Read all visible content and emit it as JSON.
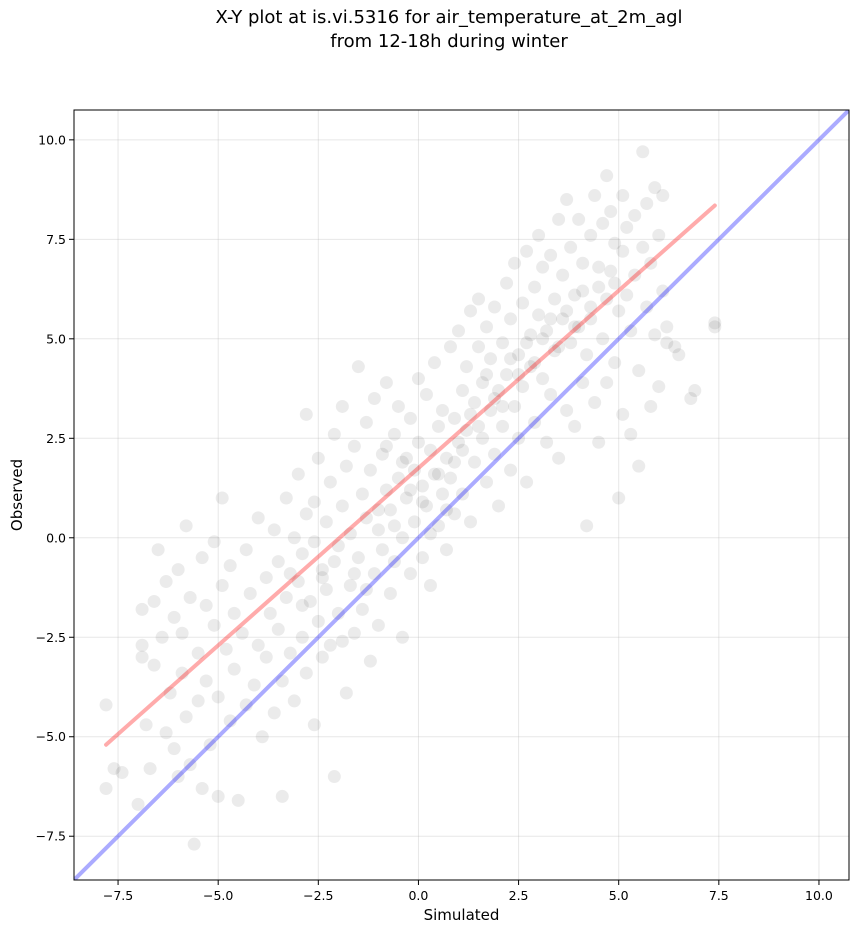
{
  "title": {
    "line1": "X-Y plot at is.vi.5316 for air_temperature_at_2m_agl",
    "line2": "from 12-18h during winter"
  },
  "chart_data": {
    "type": "scatter",
    "title": "X-Y plot at is.vi.5316 for air_temperature_at_2m_agl\nfrom 12-18h during winter",
    "xlabel": "Simulated",
    "ylabel": "Observed",
    "xlim": [
      -8.6,
      10.75
    ],
    "ylim": [
      -8.6,
      10.75
    ],
    "xticks": [
      -7.5,
      -5.0,
      -2.5,
      0.0,
      2.5,
      5.0,
      7.5,
      10.0
    ],
    "yticks": [
      -7.5,
      -5.0,
      -2.5,
      0.0,
      2.5,
      5.0,
      7.5,
      10.0
    ],
    "xtick_labels": [
      "−7.5",
      "−5.0",
      "−2.5",
      "0.0",
      "2.5",
      "5.0",
      "7.5",
      "10.0"
    ],
    "ytick_labels": [
      "−7.5",
      "−5.0",
      "−2.5",
      "0.0",
      "2.5",
      "5.0",
      "7.5",
      "10.0"
    ],
    "grid": true,
    "point_color": "#000000",
    "point_alpha": 0.08,
    "points": [
      [
        -7.8,
        -4.2
      ],
      [
        -7.8,
        -6.3
      ],
      [
        -7.6,
        -5.8
      ],
      [
        -7.4,
        -5.9
      ],
      [
        -7.0,
        -6.7
      ],
      [
        -6.9,
        -2.7
      ],
      [
        -6.9,
        -1.8
      ],
      [
        -6.9,
        -3.0
      ],
      [
        -6.8,
        -4.7
      ],
      [
        -6.7,
        -5.8
      ],
      [
        -6.6,
        -1.6
      ],
      [
        -6.6,
        -3.2
      ],
      [
        -6.5,
        -0.3
      ],
      [
        -6.4,
        -2.5
      ],
      [
        -6.3,
        -4.9
      ],
      [
        -6.3,
        -1.1
      ],
      [
        -6.2,
        -3.9
      ],
      [
        -6.1,
        -2.0
      ],
      [
        -6.1,
        -5.3
      ],
      [
        -6.0,
        -0.8
      ],
      [
        -6.0,
        -6.0
      ],
      [
        -5.9,
        -2.4
      ],
      [
        -5.9,
        -3.4
      ],
      [
        -5.8,
        0.3
      ],
      [
        -5.8,
        -4.5
      ],
      [
        -5.7,
        -1.5
      ],
      [
        -5.7,
        -5.7
      ],
      [
        -5.6,
        -7.7
      ],
      [
        -5.5,
        -2.9
      ],
      [
        -5.5,
        -4.1
      ],
      [
        -5.4,
        -0.5
      ],
      [
        -5.4,
        -6.3
      ],
      [
        -5.3,
        -1.7
      ],
      [
        -5.3,
        -3.6
      ],
      [
        -5.2,
        -5.2
      ],
      [
        -5.1,
        -2.2
      ],
      [
        -5.1,
        -0.1
      ],
      [
        -5.0,
        -4.0
      ],
      [
        -5.0,
        -6.5
      ],
      [
        -4.9,
        1.0
      ],
      [
        -4.9,
        -1.2
      ],
      [
        -4.8,
        -2.8
      ],
      [
        -4.7,
        -4.6
      ],
      [
        -4.7,
        -0.7
      ],
      [
        -4.6,
        -3.3
      ],
      [
        -4.6,
        -1.9
      ],
      [
        -4.5,
        -6.6
      ],
      [
        -4.4,
        -2.4
      ],
      [
        -4.3,
        -0.3
      ],
      [
        -4.3,
        -4.2
      ],
      [
        -4.2,
        -1.4
      ],
      [
        -4.1,
        -3.7
      ],
      [
        -4.0,
        0.5
      ],
      [
        -4.0,
        -2.7
      ],
      [
        -3.9,
        -5.0
      ],
      [
        -3.8,
        -1.0
      ],
      [
        -3.8,
        -3.0
      ],
      [
        -3.7,
        -1.9
      ],
      [
        -3.6,
        0.2
      ],
      [
        -3.6,
        -4.4
      ],
      [
        -3.5,
        -2.3
      ],
      [
        -3.5,
        -0.6
      ],
      [
        -3.4,
        -3.6
      ],
      [
        -3.4,
        -6.5
      ],
      [
        -3.3,
        1.0
      ],
      [
        -3.3,
        -1.5
      ],
      [
        -3.2,
        -2.9
      ],
      [
        -3.1,
        0.0
      ],
      [
        -3.1,
        -4.1
      ],
      [
        -3.0,
        -1.1
      ],
      [
        -3.0,
        1.6
      ],
      [
        -2.9,
        -2.5
      ],
      [
        -2.9,
        -0.4
      ],
      [
        -2.8,
        3.1
      ],
      [
        -2.8,
        -3.4
      ],
      [
        -2.8,
        0.6
      ],
      [
        -2.7,
        -1.6
      ],
      [
        -2.6,
        -4.7
      ],
      [
        -2.6,
        0.9
      ],
      [
        -2.5,
        -2.1
      ],
      [
        -2.5,
        2.0
      ],
      [
        -2.4,
        -0.8
      ],
      [
        -2.4,
        -3.0
      ],
      [
        -2.3,
        0.4
      ],
      [
        -2.3,
        -1.3
      ],
      [
        -2.2,
        1.4
      ],
      [
        -2.2,
        -2.7
      ],
      [
        -2.1,
        -6.0
      ],
      [
        -2.1,
        2.6
      ],
      [
        -2.0,
        -0.2
      ],
      [
        -2.0,
        -1.9
      ],
      [
        -1.9,
        0.8
      ],
      [
        -1.9,
        3.3
      ],
      [
        -1.8,
        -3.9
      ],
      [
        -1.8,
        1.8
      ],
      [
        -1.7,
        -1.2
      ],
      [
        -1.7,
        0.1
      ],
      [
        -1.6,
        2.3
      ],
      [
        -1.6,
        -2.4
      ],
      [
        -1.5,
        4.3
      ],
      [
        -1.5,
        -0.5
      ],
      [
        -1.4,
        1.1
      ],
      [
        -1.4,
        -1.8
      ],
      [
        -1.3,
        2.9
      ],
      [
        -1.3,
        0.5
      ],
      [
        -1.2,
        -3.1
      ],
      [
        -1.2,
        1.7
      ],
      [
        -1.1,
        -0.9
      ],
      [
        -1.1,
        3.5
      ],
      [
        -1.0,
        0.2
      ],
      [
        -1.0,
        -2.2
      ],
      [
        -0.9,
        2.1
      ],
      [
        -0.9,
        -0.3
      ],
      [
        -0.8,
        1.2
      ],
      [
        -0.8,
        3.9
      ],
      [
        -0.7,
        -1.4
      ],
      [
        -0.7,
        0.7
      ],
      [
        -0.6,
        2.6
      ],
      [
        -0.6,
        -0.6
      ],
      [
        -0.5,
        1.5
      ],
      [
        -0.5,
        3.3
      ],
      [
        -0.4,
        0.0
      ],
      [
        -0.4,
        -2.5
      ],
      [
        -0.3,
        2.0
      ],
      [
        -0.3,
        1.0
      ],
      [
        -0.2,
        3.0
      ],
      [
        -0.2,
        -0.9
      ],
      [
        -0.1,
        1.7
      ],
      [
        -0.1,
        0.4
      ],
      [
        0.0,
        2.4
      ],
      [
        0.0,
        4.0
      ],
      [
        0.1,
        -0.5
      ],
      [
        0.1,
        1.3
      ],
      [
        0.2,
        3.6
      ],
      [
        0.2,
        0.8
      ],
      [
        0.3,
        2.2
      ],
      [
        0.3,
        -1.2
      ],
      [
        0.4,
        1.6
      ],
      [
        0.4,
        4.4
      ],
      [
        0.5,
        0.3
      ],
      [
        0.5,
        2.8
      ],
      [
        0.6,
        1.1
      ],
      [
        0.6,
        3.2
      ],
      [
        0.7,
        -0.3
      ],
      [
        0.7,
        2.0
      ],
      [
        0.8,
        4.8
      ],
      [
        0.8,
        1.5
      ],
      [
        0.9,
        3.0
      ],
      [
        0.9,
        0.6
      ],
      [
        1.0,
        2.4
      ],
      [
        1.0,
        5.2
      ],
      [
        1.1,
        3.7
      ],
      [
        1.1,
        1.1
      ],
      [
        1.2,
        4.3
      ],
      [
        1.2,
        2.7
      ],
      [
        1.3,
        5.7
      ],
      [
        1.3,
        0.4
      ],
      [
        1.4,
        3.4
      ],
      [
        1.4,
        1.9
      ],
      [
        1.5,
        4.8
      ],
      [
        1.5,
        6.0
      ],
      [
        1.6,
        2.5
      ],
      [
        1.6,
        3.9
      ],
      [
        1.7,
        1.4
      ],
      [
        1.7,
        5.3
      ],
      [
        1.8,
        3.2
      ],
      [
        1.8,
        4.5
      ],
      [
        1.9,
        2.1
      ],
      [
        1.9,
        5.8
      ],
      [
        2.0,
        3.7
      ],
      [
        2.0,
        0.8
      ],
      [
        2.1,
        4.9
      ],
      [
        2.1,
        2.8
      ],
      [
        2.2,
        6.4
      ],
      [
        2.2,
        4.1
      ],
      [
        2.3,
        1.7
      ],
      [
        2.3,
        5.5
      ],
      [
        2.4,
        3.3
      ],
      [
        2.4,
        6.9
      ],
      [
        2.5,
        4.6
      ],
      [
        2.5,
        2.5
      ],
      [
        2.6,
        5.9
      ],
      [
        2.6,
        3.8
      ],
      [
        2.7,
        7.2
      ],
      [
        2.7,
        1.4
      ],
      [
        2.8,
        5.1
      ],
      [
        2.8,
        4.3
      ],
      [
        2.9,
        6.3
      ],
      [
        2.9,
        2.9
      ],
      [
        3.0,
        5.6
      ],
      [
        3.0,
        7.6
      ],
      [
        3.1,
        4.0
      ],
      [
        3.1,
        6.8
      ],
      [
        3.2,
        2.4
      ],
      [
        3.2,
        5.2
      ],
      [
        3.3,
        7.1
      ],
      [
        3.3,
        3.6
      ],
      [
        3.4,
        6.0
      ],
      [
        3.4,
        4.7
      ],
      [
        3.5,
        8.0
      ],
      [
        3.5,
        2.0
      ],
      [
        3.6,
        5.5
      ],
      [
        3.6,
        6.6
      ],
      [
        3.7,
        3.2
      ],
      [
        3.7,
        8.5
      ],
      [
        3.8,
        4.9
      ],
      [
        3.8,
        7.3
      ],
      [
        3.9,
        2.8
      ],
      [
        3.9,
        6.1
      ],
      [
        4.0,
        5.3
      ],
      [
        4.0,
        8.0
      ],
      [
        4.1,
        3.9
      ],
      [
        4.1,
        6.9
      ],
      [
        4.2,
        0.3
      ],
      [
        4.2,
        4.6
      ],
      [
        4.3,
        7.6
      ],
      [
        4.3,
        5.8
      ],
      [
        4.4,
        3.4
      ],
      [
        4.4,
        8.6
      ],
      [
        4.5,
        6.3
      ],
      [
        4.5,
        2.4
      ],
      [
        4.6,
        7.9
      ],
      [
        4.6,
        5.0
      ],
      [
        4.7,
        9.1
      ],
      [
        4.7,
        3.9
      ],
      [
        4.8,
        6.7
      ],
      [
        4.8,
        8.2
      ],
      [
        4.9,
        4.4
      ],
      [
        4.9,
        7.4
      ],
      [
        5.0,
        5.7
      ],
      [
        5.0,
        1.0
      ],
      [
        5.1,
        8.6
      ],
      [
        5.1,
        3.1
      ],
      [
        5.2,
        6.1
      ],
      [
        5.2,
        7.8
      ],
      [
        5.3,
        2.6
      ],
      [
        5.3,
        5.2
      ],
      [
        5.4,
        8.1
      ],
      [
        5.4,
        6.6
      ],
      [
        5.5,
        4.2
      ],
      [
        5.5,
        1.8
      ],
      [
        5.6,
        7.3
      ],
      [
        5.6,
        9.7
      ],
      [
        5.7,
        5.8
      ],
      [
        5.7,
        8.4
      ],
      [
        5.8,
        3.3
      ],
      [
        5.8,
        6.9
      ],
      [
        5.9,
        8.8
      ],
      [
        5.9,
        5.1
      ],
      [
        6.0,
        7.6
      ],
      [
        6.0,
        3.8
      ],
      [
        6.1,
        6.2
      ],
      [
        6.1,
        8.6
      ],
      [
        6.2,
        5.3
      ],
      [
        6.2,
        4.9
      ],
      [
        6.4,
        4.8
      ],
      [
        6.5,
        4.6
      ],
      [
        6.8,
        3.5
      ],
      [
        6.9,
        3.7
      ],
      [
        7.4,
        5.4
      ],
      [
        7.4,
        5.3
      ],
      [
        -3.2,
        -0.9
      ],
      [
        -2.9,
        -1.7
      ],
      [
        -2.6,
        -0.1
      ],
      [
        -2.4,
        -1.0
      ],
      [
        -2.1,
        -0.6
      ],
      [
        -1.9,
        -2.6
      ],
      [
        -1.6,
        -0.9
      ],
      [
        -1.3,
        -1.3
      ],
      [
        -1.0,
        0.7
      ],
      [
        -0.8,
        2.3
      ],
      [
        -0.6,
        0.3
      ],
      [
        -0.4,
        1.9
      ],
      [
        -0.2,
        1.2
      ],
      [
        0.1,
        0.9
      ],
      [
        0.3,
        0.1
      ],
      [
        0.5,
        1.6
      ],
      [
        0.7,
        0.7
      ],
      [
        0.9,
        1.9
      ],
      [
        1.1,
        2.2
      ],
      [
        1.3,
        3.1
      ],
      [
        1.5,
        2.8
      ],
      [
        1.7,
        4.1
      ],
      [
        1.9,
        3.5
      ],
      [
        2.1,
        3.3
      ],
      [
        2.3,
        4.5
      ],
      [
        2.5,
        4.1
      ],
      [
        2.7,
        4.9
      ],
      [
        2.9,
        4.4
      ],
      [
        3.1,
        5.0
      ],
      [
        3.3,
        5.5
      ],
      [
        3.5,
        4.8
      ],
      [
        3.7,
        5.7
      ],
      [
        3.9,
        5.3
      ],
      [
        4.1,
        6.2
      ],
      [
        4.3,
        5.5
      ],
      [
        4.5,
        6.8
      ],
      [
        4.7,
        6.0
      ],
      [
        4.9,
        6.4
      ],
      [
        5.1,
        7.2
      ]
    ],
    "series": [
      {
        "name": "",
        "type": "line",
        "color": "#ff0000",
        "alpha": 0.33,
        "x": [
          -7.8,
          7.4
        ],
        "y": [
          -5.2,
          8.35
        ]
      },
      {
        "name": "",
        "type": "line",
        "color": "#0000ff",
        "alpha": 0.33,
        "x": [
          -8.6,
          10.75
        ],
        "y": [
          -8.6,
          10.75
        ]
      }
    ]
  }
}
